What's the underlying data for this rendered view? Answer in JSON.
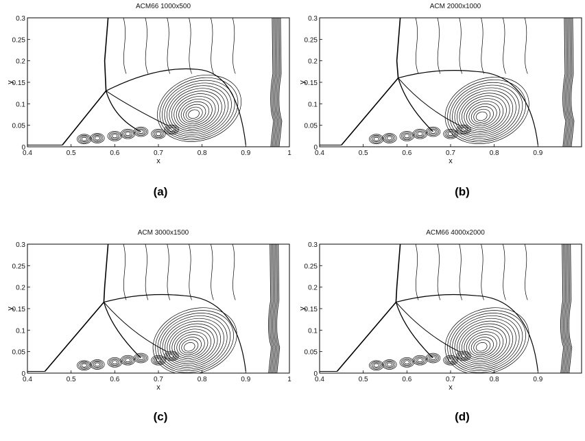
{
  "chart_data": [
    {
      "type": "contour",
      "title": "ACM66 1000x500",
      "panel_label": "(a)",
      "xlabel": "x",
      "ylabel": "y",
      "xlim": [
        0.4,
        1.0
      ],
      "ylim": [
        0,
        0.3
      ],
      "xticks": [
        "0.4",
        "0.5",
        "0.6",
        "0.7",
        "0.8",
        "0.9",
        "1"
      ],
      "yticks": [
        "0",
        "0.05",
        "0.1",
        "0.15",
        "0.2",
        "0.25",
        "0.3"
      ],
      "features": {
        "triple_point": [
          0.58,
          0.13
        ],
        "mach_stem_top_x": 0.58,
        "incident_shock_foot_x": 0.48,
        "vortex_center": [
          0.78,
          0.075
        ],
        "bow_shock_apex": [
          0.79,
          0.18
        ],
        "right_shock_x": 0.97
      }
    },
    {
      "type": "contour",
      "title": "ACM 2000x1000",
      "panel_label": "(b)",
      "xlabel": "x",
      "ylabel": "y",
      "xlim": [
        0.4,
        1.0
      ],
      "ylim": [
        0,
        0.3
      ],
      "xticks": [
        "0.4",
        "0.5",
        "0.6",
        "0.7",
        "0.8",
        "0.9"
      ],
      "yticks": [
        "0",
        "0.05",
        "0.1",
        "0.15",
        "0.2",
        "0.25",
        "0.3"
      ],
      "features": {
        "triple_point": [
          0.58,
          0.16
        ],
        "mach_stem_top_x": 0.58,
        "incident_shock_foot_x": 0.45,
        "vortex_center": [
          0.77,
          0.07
        ],
        "bow_shock_apex": [
          0.76,
          0.175
        ],
        "right_shock_x": 0.97
      }
    },
    {
      "type": "contour",
      "title": "ACM 3000x1500",
      "panel_label": "(c)",
      "xlabel": "x",
      "ylabel": "y",
      "xlim": [
        0.4,
        1.0
      ],
      "ylim": [
        0,
        0.3
      ],
      "xticks": [
        "0.4",
        "0.5",
        "0.6",
        "0.7",
        "0.8",
        "0.9",
        "1"
      ],
      "yticks": [
        "0",
        "0.05",
        "0.1",
        "0.15",
        "0.2",
        "0.25",
        "0.3"
      ],
      "features": {
        "triple_point": [
          0.575,
          0.165
        ],
        "mach_stem_top_x": 0.58,
        "incident_shock_foot_x": 0.44,
        "vortex_center": [
          0.77,
          0.06
        ],
        "bow_shock_apex": [
          0.76,
          0.18
        ],
        "right_shock_x": 0.965
      }
    },
    {
      "type": "contour",
      "title": "ACM66 4000x2000",
      "panel_label": "(d)",
      "xlabel": "x",
      "ylabel": "y",
      "xlim": [
        0.4,
        1.0
      ],
      "ylim": [
        0,
        0.3
      ],
      "xticks": [
        "0.4",
        "0.5",
        "0.6",
        "0.7",
        "0.8",
        "0.9"
      ],
      "yticks": [
        "0",
        "0.05",
        "0.1",
        "0.15",
        "0.2",
        "0.25",
        "0.3"
      ],
      "features": {
        "triple_point": [
          0.575,
          0.165
        ],
        "mach_stem_top_x": 0.58,
        "incident_shock_foot_x": 0.44,
        "vortex_center": [
          0.77,
          0.06
        ],
        "bow_shock_apex": [
          0.76,
          0.18
        ],
        "right_shock_x": 0.965
      }
    }
  ]
}
